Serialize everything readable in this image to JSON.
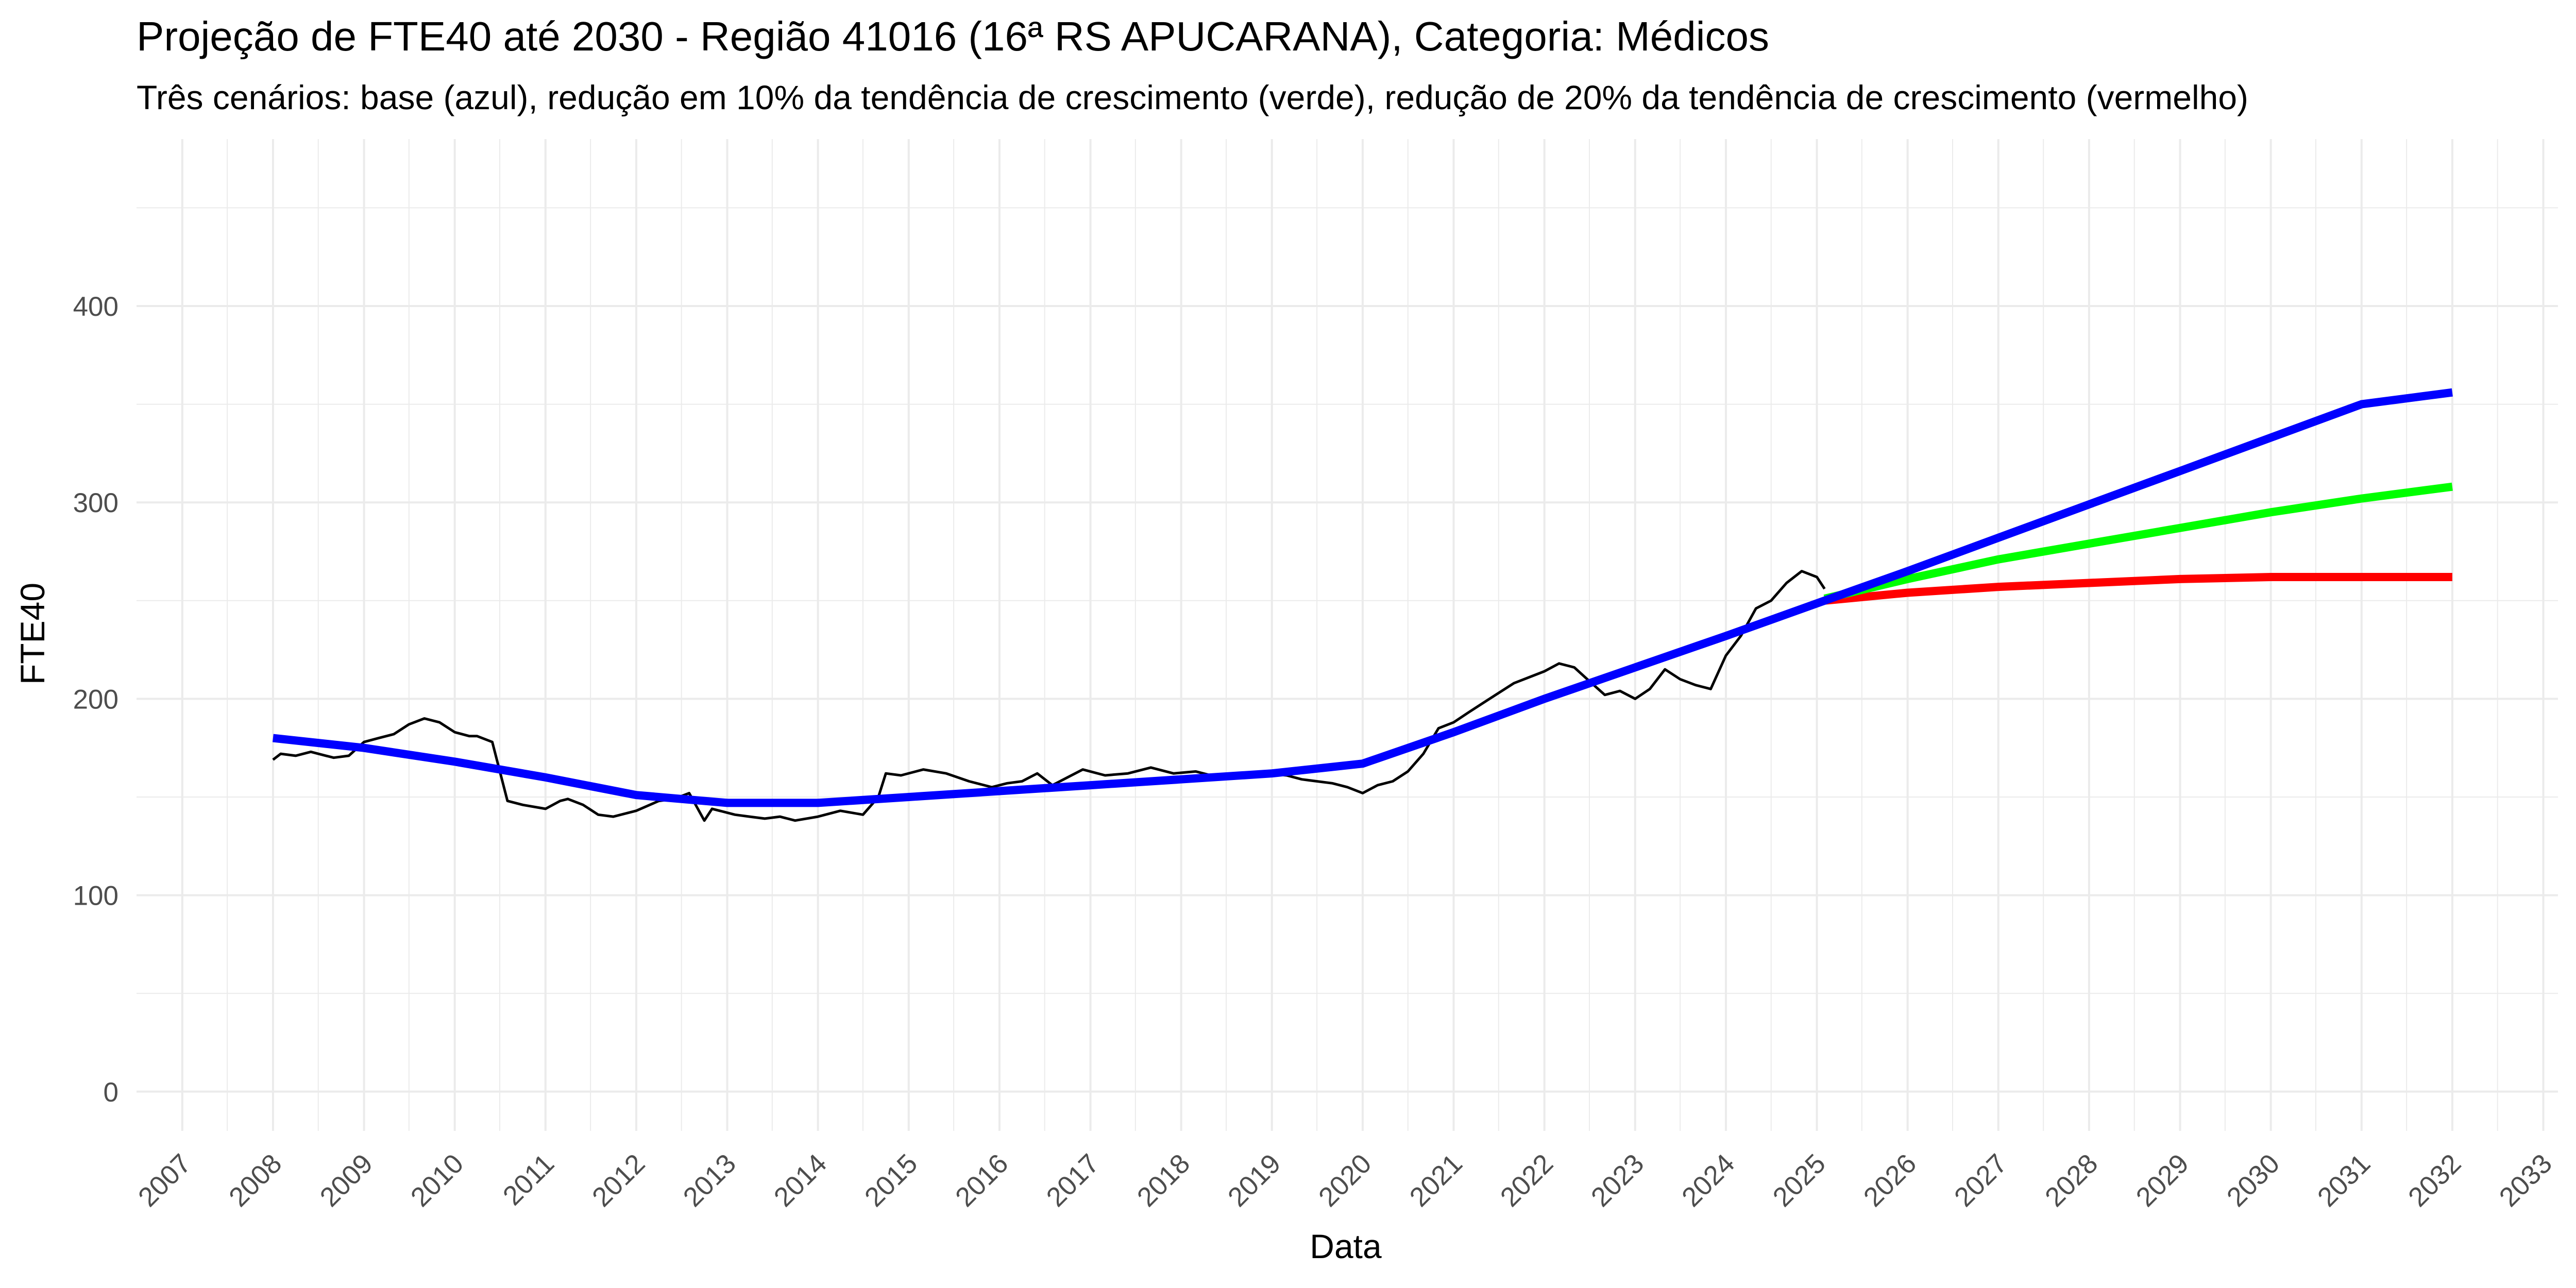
{
  "chart_data": {
    "type": "line",
    "title": "Projeção de FTE40 até 2030 - Região 41016 (16ª RS APUCARANA), Categoria: Médicos",
    "subtitle": "Três cenários: base (azul), redução em 10% da tendência de crescimento (verde), redução de 20% da tendência de crescimento (vermelho)",
    "xlabel": "Data",
    "ylabel": "FTE40",
    "xlim": [
      "2006-07-01",
      "2033-03-01"
    ],
    "ylim": [
      -20,
      485
    ],
    "x_ticks": [
      "2007",
      "2008",
      "2009",
      "2010",
      "2011",
      "2012",
      "2013",
      "2014",
      "2015",
      "2016",
      "2017",
      "2018",
      "2019",
      "2020",
      "2021",
      "2022",
      "2023",
      "2024",
      "2025",
      "2026",
      "2027",
      "2028",
      "2029",
      "2030",
      "2031",
      "2032",
      "2033"
    ],
    "y_ticks": [
      0,
      100,
      200,
      300,
      400
    ],
    "grid": true,
    "colors": {
      "observed": "#000000",
      "base": "#0000ff",
      "minus10": "#00ff00",
      "minus20": "#ff0000",
      "grid": "#ebebeb"
    },
    "series": [
      {
        "x": [
          "2008-01-01",
          "2008-02-01",
          "2008-04-01",
          "2008-06-01",
          "2008-08-01",
          "2008-09-01",
          "2008-11-01",
          "2009-01-01",
          "2009-03-01",
          "2009-05-01",
          "2009-07-01",
          "2009-09-01",
          "2009-11-01",
          "2010-01-01",
          "2010-03-01",
          "2010-04-01",
          "2010-06-01",
          "2010-08-01",
          "2010-10-01",
          "2011-01-01",
          "2011-03-01",
          "2011-04-01",
          "2011-06-01",
          "2011-08-01",
          "2011-10-01",
          "2012-01-01",
          "2012-04-01",
          "2012-06-01",
          "2012-08-01",
          "2012-10-01",
          "2012-11-01",
          "2013-02-01",
          "2013-04-01",
          "2013-06-01",
          "2013-08-01",
          "2013-10-01",
          "2014-01-01",
          "2014-04-01",
          "2014-07-01",
          "2014-09-01",
          "2014-10-01",
          "2014-12-01",
          "2015-03-01",
          "2015-06-01",
          "2015-09-01",
          "2015-12-01",
          "2016-02-01",
          "2016-04-01",
          "2016-06-01",
          "2016-08-01",
          "2016-10-01",
          "2016-12-01",
          "2017-03-01",
          "2017-06-01",
          "2017-09-01",
          "2017-12-01",
          "2018-03-01",
          "2018-06-01",
          "2018-09-01",
          "2018-12-01",
          "2019-03-01",
          "2019-05-01",
          "2019-07-01",
          "2019-09-01",
          "2019-11-01",
          "2020-01-01",
          "2020-03-01",
          "2020-05-01",
          "2020-07-01",
          "2020-09-01",
          "2020-11-01",
          "2021-01-01",
          "2021-03-01",
          "2021-05-01",
          "2021-07-01",
          "2021-09-01",
          "2021-11-01",
          "2022-01-01",
          "2022-03-01",
          "2022-05-01",
          "2022-07-01",
          "2022-09-01",
          "2022-11-01",
          "2023-01-01",
          "2023-03-01",
          "2023-05-01",
          "2023-07-01",
          "2023-09-01",
          "2023-11-01",
          "2024-01-01",
          "2024-03-01",
          "2024-05-01",
          "2024-07-01",
          "2024-09-01",
          "2024-11-01",
          "2025-01-01",
          "2025-02-01"
        ],
        "y": [
          169,
          172,
          171,
          173,
          171,
          170,
          171,
          178,
          180,
          182,
          187,
          190,
          188,
          183,
          181,
          181,
          178,
          148,
          146,
          144,
          148,
          149,
          146,
          141,
          140,
          143,
          148,
          149,
          152,
          138,
          144,
          141,
          140,
          139,
          140,
          138,
          140,
          143,
          141,
          150,
          162,
          161,
          164,
          162,
          158,
          155,
          157,
          158,
          162,
          156,
          160,
          164,
          161,
          162,
          165,
          162,
          163,
          160,
          162,
          162,
          161,
          159,
          158,
          157,
          155,
          152,
          156,
          158,
          163,
          172,
          185,
          188,
          193,
          198,
          203,
          208,
          211,
          214,
          218,
          216,
          209,
          202,
          204,
          200,
          205,
          215,
          210,
          207,
          205,
          222,
          232,
          246,
          250,
          259,
          265,
          262,
          256
        ]
      },
      {
        "x": [
          "2008-01-01",
          "2009-01-01",
          "2010-01-01",
          "2011-01-01",
          "2012-01-01",
          "2013-01-01",
          "2014-01-01",
          "2015-01-01",
          "2016-01-01",
          "2017-01-01",
          "2018-01-01",
          "2019-01-01",
          "2020-01-01",
          "2021-01-01",
          "2022-01-01",
          "2023-01-01",
          "2024-01-01",
          "2025-02-01",
          "2026-01-01",
          "2027-01-01",
          "2028-01-01",
          "2029-01-01",
          "2030-01-01",
          "2031-01-01",
          "2032-01-01"
        ],
        "y": [
          180,
          175,
          168,
          160,
          151,
          147,
          147,
          150,
          153,
          156,
          159,
          162,
          167,
          183,
          200,
          216,
          232,
          250,
          265,
          282,
          299,
          316,
          333,
          350,
          356
        ]
      },
      {
        "x": [
          "2025-02-01",
          "2026-01-01",
          "2027-01-01",
          "2028-01-01",
          "2029-01-01",
          "2030-01-01",
          "2031-01-01",
          "2032-01-01"
        ],
        "y": [
          251,
          261,
          271,
          279,
          287,
          295,
          302,
          308
        ]
      },
      {
        "x": [
          "2025-02-01",
          "2026-01-01",
          "2027-01-01",
          "2028-01-01",
          "2029-01-01",
          "2030-01-01",
          "2031-01-01",
          "2032-01-01"
        ],
        "y": [
          250,
          254,
          257,
          259,
          261,
          262,
          262,
          262
        ]
      }
    ]
  }
}
